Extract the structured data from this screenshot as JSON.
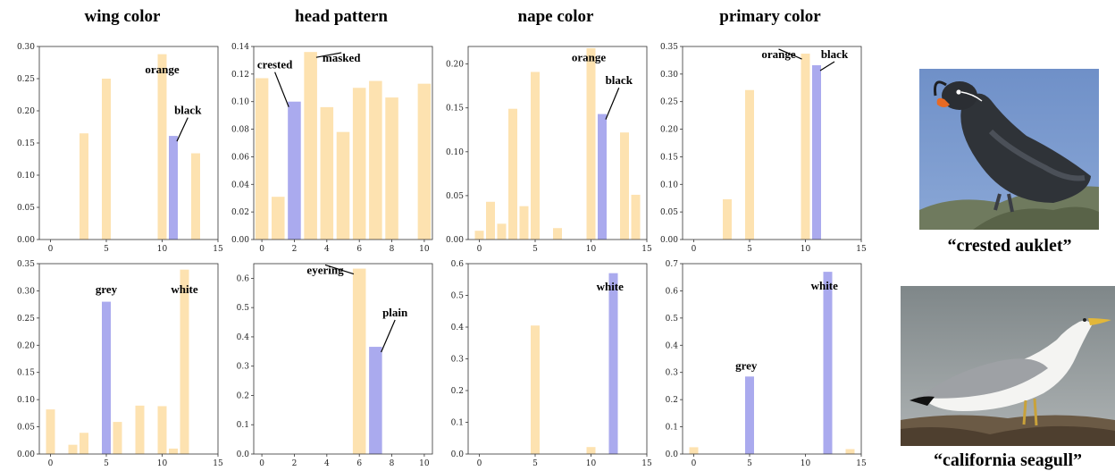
{
  "column_titles": [
    "wing color",
    "head pattern",
    "nape color",
    "primary color"
  ],
  "captions": [
    "“crested auklet”",
    "“california seagull”"
  ],
  "colors": {
    "bar": "#fde2b0",
    "highlight": "#aaaaee",
    "axis": "#333333"
  },
  "chart_data": [
    {
      "type": "bar",
      "title": "wing color",
      "xlim": [
        -1,
        15
      ],
      "xticks": [
        0,
        5,
        10,
        15
      ],
      "ylim": [
        0,
        0.3
      ],
      "yticks": [
        0.0,
        0.05,
        0.1,
        0.15,
        0.2,
        0.25,
        0.3
      ],
      "ydec": 2,
      "x": [
        3,
        5,
        10,
        11,
        13
      ],
      "values": [
        0.165,
        0.25,
        0.288,
        0.161,
        0.134
      ],
      "highlight": [
        11
      ],
      "annotations": [
        {
          "text": "orange",
          "x": 10,
          "y": 0.288,
          "tx": 10,
          "ty": 0.258,
          "arrow": false
        },
        {
          "text": "black",
          "x": 11,
          "y": 0.161,
          "tx": 12.3,
          "ty": 0.195,
          "arrow": true
        }
      ]
    },
    {
      "type": "bar",
      "title": "head pattern",
      "xlim": [
        -0.5,
        10.5
      ],
      "xticks": [
        0,
        2,
        4,
        6,
        8,
        10
      ],
      "ylim": [
        0,
        0.14
      ],
      "yticks": [
        0.0,
        0.02,
        0.04,
        0.06,
        0.08,
        0.1,
        0.12,
        0.14
      ],
      "ydec": 2,
      "x": [
        0,
        1,
        2,
        3,
        4,
        5,
        6,
        7,
        8,
        10
      ],
      "values": [
        0.117,
        0.031,
        0.1,
        0.136,
        0.096,
        0.078,
        0.11,
        0.115,
        0.103,
        0.113
      ],
      "highlight": [
        2
      ],
      "annotations": [
        {
          "text": "crested",
          "x": 2,
          "y": 0.1,
          "tx": 0.8,
          "ty": 0.124,
          "arrow": true
        },
        {
          "text": "masked",
          "x": 3,
          "y": 0.136,
          "tx": 4.9,
          "ty": 0.129,
          "arrow": true
        }
      ]
    },
    {
      "type": "bar",
      "title": "nape color",
      "xlim": [
        -1,
        15
      ],
      "xticks": [
        0,
        5,
        10,
        15
      ],
      "ylim": [
        0,
        0.22
      ],
      "yticks": [
        0.0,
        0.05,
        0.1,
        0.15,
        0.2
      ],
      "ydec": 2,
      "x": [
        0,
        1,
        2,
        3,
        4,
        5,
        7,
        10,
        11,
        13,
        14
      ],
      "values": [
        0.01,
        0.043,
        0.018,
        0.149,
        0.038,
        0.191,
        0.013,
        0.218,
        0.143,
        0.122,
        0.051
      ],
      "highlight": [
        11
      ],
      "annotations": [
        {
          "text": "orange",
          "x": 10,
          "y": 0.218,
          "tx": 9.8,
          "ty": 0.203,
          "arrow": false
        },
        {
          "text": "black",
          "x": 11,
          "y": 0.143,
          "tx": 12.5,
          "ty": 0.177,
          "arrow": true
        }
      ]
    },
    {
      "type": "bar",
      "title": "primary color",
      "xlim": [
        -1,
        15
      ],
      "xticks": [
        0,
        5,
        10,
        15
      ],
      "ylim": [
        0,
        0.35
      ],
      "yticks": [
        0.0,
        0.05,
        0.1,
        0.15,
        0.2,
        0.25,
        0.3,
        0.35
      ],
      "ydec": 2,
      "x": [
        3,
        5,
        10,
        11
      ],
      "values": [
        0.073,
        0.271,
        0.337,
        0.316
      ],
      "highlight": [
        11
      ],
      "annotations": [
        {
          "text": "orange",
          "x": 10,
          "y": 0.337,
          "tx": 7.6,
          "ty": 0.329,
          "arrow": true
        },
        {
          "text": "black",
          "x": 11,
          "y": 0.316,
          "tx": 12.6,
          "ty": 0.329,
          "arrow": true
        }
      ]
    },
    {
      "type": "bar",
      "title": "wing color",
      "xlim": [
        -1,
        15
      ],
      "xticks": [
        0,
        5,
        10,
        15
      ],
      "ylim": [
        0,
        0.35
      ],
      "yticks": [
        0.0,
        0.05,
        0.1,
        0.15,
        0.2,
        0.25,
        0.3,
        0.35
      ],
      "ydec": 2,
      "x": [
        0,
        2,
        3,
        5,
        6,
        8,
        10,
        11,
        12
      ],
      "values": [
        0.082,
        0.017,
        0.039,
        0.28,
        0.059,
        0.089,
        0.088,
        0.01,
        0.339
      ],
      "highlight": [
        5
      ],
      "annotations": [
        {
          "text": "grey",
          "x": 5,
          "y": 0.28,
          "tx": 5,
          "ty": 0.296,
          "arrow": false
        },
        {
          "text": "white",
          "x": 12,
          "y": 0.339,
          "tx": 12,
          "ty": 0.296,
          "arrow": false
        }
      ]
    },
    {
      "type": "bar",
      "title": "head pattern",
      "xlim": [
        -0.5,
        10.5
      ],
      "xticks": [
        0,
        2,
        4,
        6,
        8,
        10
      ],
      "ylim": [
        0,
        0.65
      ],
      "yticks": [
        0.0,
        0.1,
        0.2,
        0.3,
        0.4,
        0.5,
        0.6
      ],
      "ydec": 1,
      "x": [
        6,
        7
      ],
      "values": [
        0.633,
        0.366
      ],
      "highlight": [
        7
      ],
      "annotations": [
        {
          "text": "eyering",
          "x": 6,
          "y": 0.633,
          "tx": 3.9,
          "ty": 0.615,
          "arrow": true
        },
        {
          "text": "plain",
          "x": 7,
          "y": 0.366,
          "tx": 8.2,
          "ty": 0.47,
          "arrow": true
        }
      ]
    },
    {
      "type": "bar",
      "title": "nape color",
      "xlim": [
        -1,
        15
      ],
      "xticks": [
        0,
        5,
        10,
        15
      ],
      "ylim": [
        0,
        0.6
      ],
      "yticks": [
        0.0,
        0.1,
        0.2,
        0.3,
        0.4,
        0.5,
        0.6
      ],
      "ydec": 1,
      "x": [
        5,
        10,
        12
      ],
      "values": [
        0.405,
        0.022,
        0.57
      ],
      "highlight": [
        12
      ],
      "annotations": [
        {
          "text": "white",
          "x": 12,
          "y": 0.57,
          "tx": 11.7,
          "ty": 0.515,
          "arrow": false
        }
      ]
    },
    {
      "type": "bar",
      "title": "primary color",
      "xlim": [
        -1,
        15
      ],
      "xticks": [
        0,
        5,
        10,
        15
      ],
      "ylim": [
        0,
        0.7
      ],
      "yticks": [
        0.0,
        0.1,
        0.2,
        0.3,
        0.4,
        0.5,
        0.6,
        0.7
      ],
      "ydec": 1,
      "x": [
        0,
        5,
        12,
        14
      ],
      "values": [
        0.025,
        0.285,
        0.67,
        0.018
      ],
      "highlight": [
        5,
        12
      ],
      "annotations": [
        {
          "text": "grey",
          "x": 5,
          "y": 0.285,
          "tx": 4.7,
          "ty": 0.31,
          "arrow": false
        },
        {
          "text": "white",
          "x": 12,
          "y": 0.67,
          "tx": 11.7,
          "ty": 0.605,
          "arrow": false
        }
      ]
    }
  ]
}
